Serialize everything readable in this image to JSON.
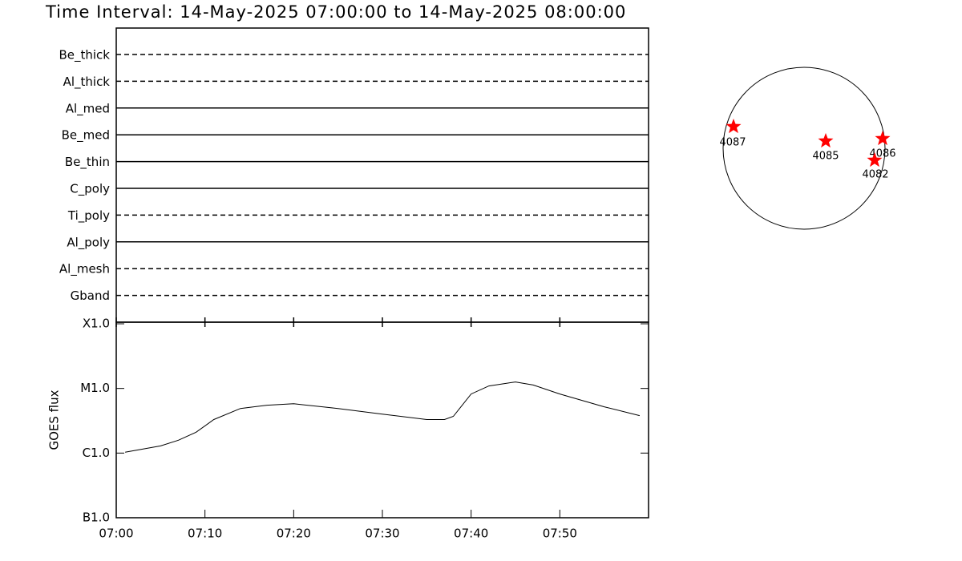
{
  "title": "Time Interval: 14-May-2025 07:00:00 to 14-May-2025 08:00:00",
  "filters": [
    {
      "name": "Be_thick",
      "style": "dashed"
    },
    {
      "name": "Al_thick",
      "style": "dashed"
    },
    {
      "name": "Al_med",
      "style": "solid"
    },
    {
      "name": "Be_med",
      "style": "solid"
    },
    {
      "name": "Be_thin",
      "style": "solid"
    },
    {
      "name": "C_poly",
      "style": "solid"
    },
    {
      "name": "Ti_poly",
      "style": "dashed"
    },
    {
      "name": "Al_poly",
      "style": "solid"
    },
    {
      "name": "Al_mesh",
      "style": "dashed"
    },
    {
      "name": "Gband",
      "style": "dashed"
    }
  ],
  "chart_data": {
    "type": "line",
    "y_label": "GOES flux",
    "log_y": true,
    "x": [
      "07:01",
      "07:05",
      "07:07",
      "07:09",
      "07:11",
      "07:14",
      "07:17",
      "07:20",
      "07:25",
      "07:30",
      "07:35",
      "07:37",
      "07:38",
      "07:40",
      "07:42",
      "07:45",
      "07:47",
      "07:50",
      "07:55",
      "07:59"
    ],
    "series": [
      {
        "name": "GOES",
        "color": "#000000",
        "values": [
          1.03e-06,
          1.29e-06,
          1.58e-06,
          2.1e-06,
          3.3e-06,
          4.9e-06,
          5.5e-06,
          5.8e-06,
          4.9e-06,
          4e-06,
          3.3e-06,
          3.3e-06,
          3.7e-06,
          8.2e-06,
          1.09e-05,
          1.26e-05,
          1.13e-05,
          8.2e-06,
          5.2e-06,
          3.8e-06
        ]
      }
    ],
    "xlim": [
      "07:00",
      "08:00"
    ],
    "xticks": [
      "07:00",
      "07:10",
      "07:20",
      "07:30",
      "07:40",
      "07:50"
    ],
    "ylim": [
      1e-07,
      0.0001
    ],
    "yticks": [
      {
        "value": 0.0001,
        "label": "X1.0"
      },
      {
        "value": 1e-05,
        "label": "M1.0"
      },
      {
        "value": 1e-06,
        "label": "C1.0"
      },
      {
        "value": 1e-07,
        "label": "B1.0"
      }
    ]
  },
  "sun": {
    "marker_color": "#ff0000",
    "regions": [
      "4087",
      "4085",
      "4086",
      "4082"
    ]
  }
}
